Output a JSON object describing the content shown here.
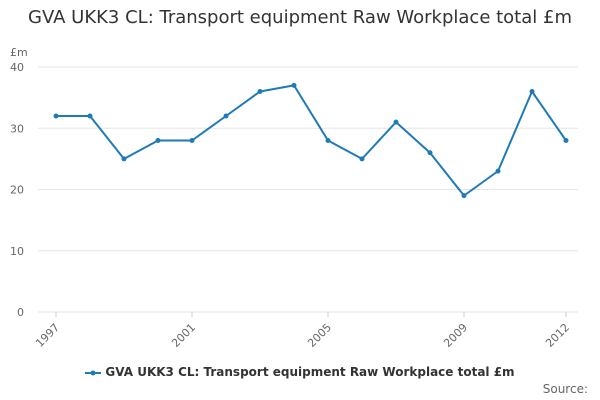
{
  "chart_data": {
    "type": "line",
    "title": "GVA UKK3 CL: Transport equipment Raw Workplace total £m",
    "ylabel": "£m",
    "xlabel": "",
    "ylim": [
      0,
      40
    ],
    "yticks": [
      0,
      10,
      20,
      30,
      40
    ],
    "xticks": [
      1997,
      2001,
      2005,
      2009,
      2012
    ],
    "grid": true,
    "legend_position": "bottom",
    "color": "#1f7ab8",
    "series": [
      {
        "name": "GVA UKK3 CL: Transport equipment Raw Workplace total £m",
        "x": [
          1997,
          1998,
          1999,
          2000,
          2001,
          2002,
          2003,
          2004,
          2005,
          2006,
          2007,
          2008,
          2009,
          2010,
          2011,
          2012
        ],
        "values": [
          32,
          32,
          25,
          28,
          28,
          32,
          36,
          37,
          28,
          25,
          31,
          26,
          19,
          23,
          36,
          28
        ]
      }
    ]
  },
  "footer": {
    "source_label": "Source:"
  }
}
